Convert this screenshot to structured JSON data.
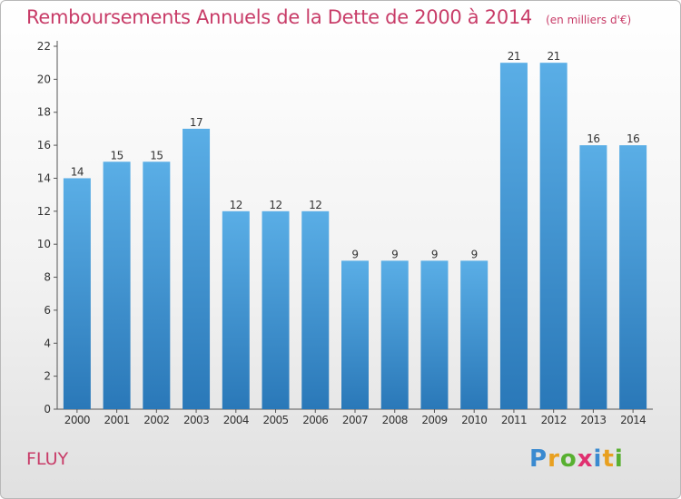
{
  "chart_data": {
    "type": "bar",
    "title": "Remboursements Annuels de la Dette de 2000 à 2014",
    "unit_label": "(en milliers d'€)",
    "categories": [
      "2000",
      "2001",
      "2002",
      "2003",
      "2004",
      "2005",
      "2006",
      "2007",
      "2008",
      "2009",
      "2010",
      "2011",
      "2012",
      "2013",
      "2014"
    ],
    "values": [
      14,
      15,
      15,
      17,
      12,
      12,
      12,
      9,
      9,
      9,
      9,
      21,
      21,
      16,
      16
    ],
    "ylim": [
      0,
      22
    ],
    "yticks": [
      0,
      2,
      4,
      6,
      8,
      10,
      12,
      14,
      16,
      18,
      20,
      22
    ],
    "xlabel": "",
    "ylabel": "",
    "grid": false,
    "colors": {
      "bar_top": "#5aaee6",
      "bar_bottom": "#2a78b8",
      "title": "#c83c68"
    }
  },
  "commune": "FLUY",
  "logo": {
    "letters": [
      "P",
      "r",
      "o",
      "x",
      "i",
      "t",
      "i"
    ],
    "colors": [
      "#3a8ad0",
      "#e8a020",
      "#58b030",
      "#e03070",
      "#3a8ad0",
      "#e8a020",
      "#58b030"
    ]
  }
}
